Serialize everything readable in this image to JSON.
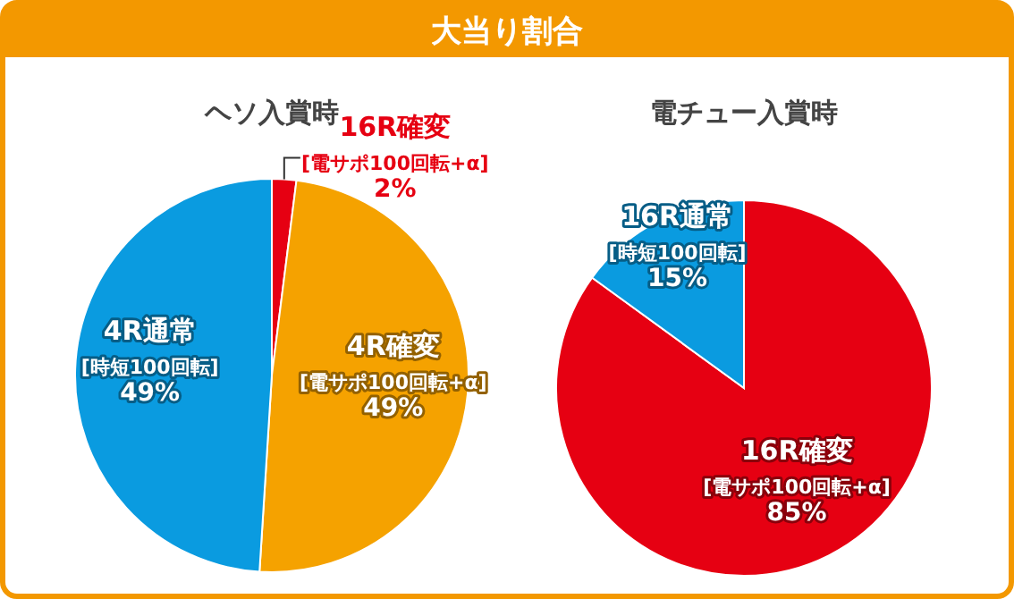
{
  "chart_data": [
    {
      "type": "pie",
      "title": "大当り割合",
      "subtitle": "ヘソ入賞時",
      "categories": [
        "16R確変[電サポ100回転+α]",
        "4R確変[電サポ100回転+α]",
        "4R通常[時短100回転]"
      ],
      "values": [
        2,
        49,
        49
      ],
      "value_labels": [
        "2%",
        "49%",
        "49%"
      ],
      "colors": [
        "#e60012",
        "#f5a200",
        "#0a9be0"
      ]
    },
    {
      "type": "pie",
      "subtitle": "電チュー入賞時",
      "categories": [
        "16R確変[電サポ100回転+α]",
        "16R通常[時短100回転]"
      ],
      "values": [
        85,
        15
      ],
      "value_labels": [
        "85%",
        "15%"
      ],
      "colors": [
        "#e60012",
        "#0a9be0"
      ]
    }
  ]
}
